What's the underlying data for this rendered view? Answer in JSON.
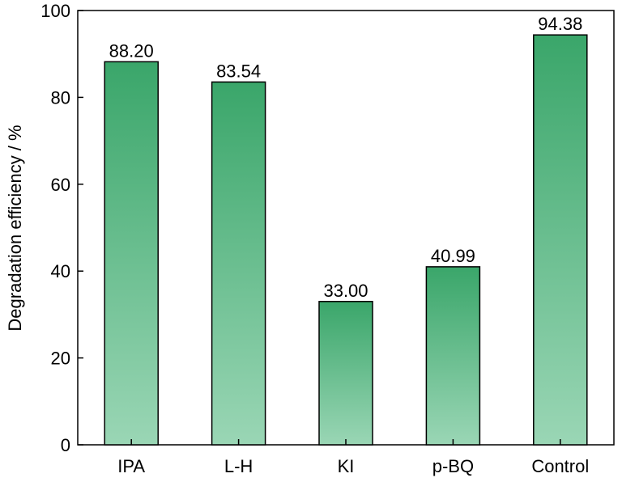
{
  "chart_data": {
    "type": "bar",
    "categories": [
      "IPA",
      "L-H",
      "KI",
      "p-BQ",
      "Control"
    ],
    "values": [
      88.2,
      83.54,
      33.0,
      40.99,
      94.38
    ],
    "value_labels": [
      "88.20",
      "83.54",
      "33.00",
      "40.99",
      "94.38"
    ],
    "title": "",
    "xlabel": "",
    "ylabel": "Degradation efficiency / %",
    "ylim": [
      0,
      100
    ],
    "yticks": [
      0,
      20,
      40,
      60,
      80,
      100
    ],
    "grid": false,
    "bar_color_top": "#3aa66a",
    "bar_color_bottom": "#9ad6b5",
    "bar_edge_color": "#000000"
  }
}
